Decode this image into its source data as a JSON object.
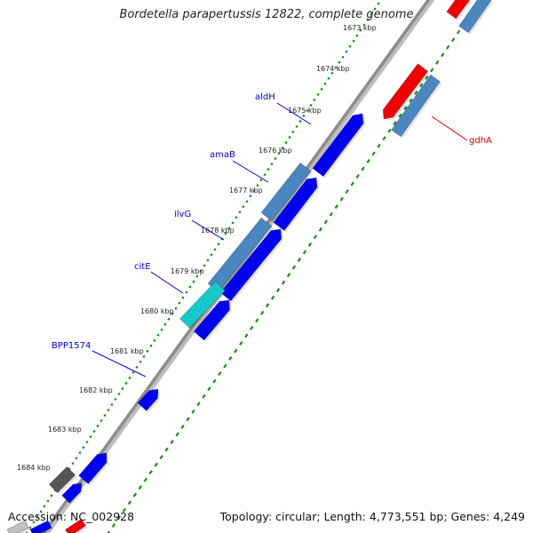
{
  "title": "Bordetella parapertussis 12822, complete genome",
  "footer": {
    "accession": "Accession: NC_002928",
    "summary": "Topology: circular; Length: 4,773,551 bp; Genes: 4,249"
  },
  "ticks": [
    {
      "label": "1673 kbp"
    },
    {
      "label": "1674 kbp"
    },
    {
      "label": "1675 kbp"
    },
    {
      "label": "1676 kbp"
    },
    {
      "label": "1677 kbp"
    },
    {
      "label": "1678 kbp"
    },
    {
      "label": "1679 kbp"
    },
    {
      "label": "1680 kbp"
    },
    {
      "label": "1681 kbp"
    },
    {
      "label": "1682 kbp"
    },
    {
      "label": "1683 kbp"
    },
    {
      "label": "1684 kbp"
    }
  ],
  "gene_labels": [
    {
      "name": "aldH",
      "color": "#0000cc"
    },
    {
      "name": "amaB",
      "color": "#0000cc"
    },
    {
      "name": "ilvG",
      "color": "#0000cc"
    },
    {
      "name": "citE",
      "color": "#0000cc"
    },
    {
      "name": "BPP1574",
      "color": "#0000cc"
    },
    {
      "name": "gdhA",
      "color": "#dd0000"
    }
  ],
  "colors": {
    "backbone": "#8c8c8c",
    "tick_ring": "#1a8a1a",
    "gene_blue": "#0000ee",
    "gene_steel": "#4a86c0",
    "gene_red": "#ee0000",
    "gene_cyan": "#18c8c8",
    "gene_gray": "#555555"
  }
}
